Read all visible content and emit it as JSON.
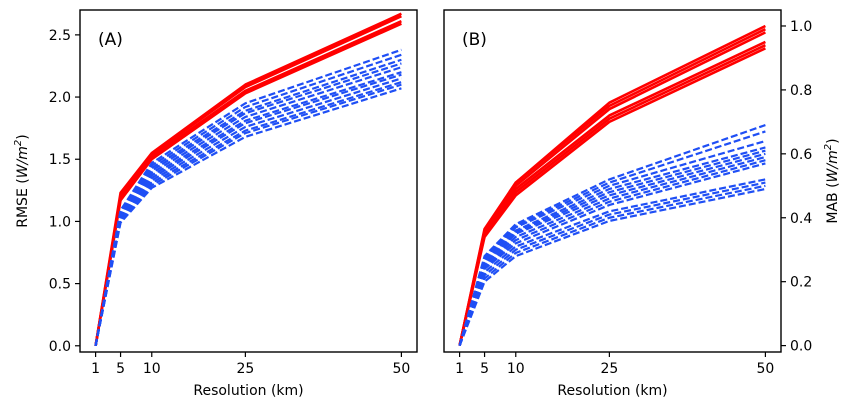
{
  "chart_data": [
    {
      "type": "line",
      "panel_label": "(A)",
      "xlabel": "Resolution (km)",
      "ylabel": "RMSE (W/m²)",
      "ylabel_parts": [
        "RMSE (",
        "W/m",
        "2",
        ")"
      ],
      "x": [
        1,
        5,
        10,
        25,
        50
      ],
      "xticks": [
        "1",
        "5",
        "10",
        "25",
        "50"
      ],
      "ylim": [
        -0.05,
        2.7
      ],
      "yticks": [
        "0.0",
        "0.5",
        "1.0",
        "1.5",
        "2.0",
        "2.5"
      ],
      "ytick_values": [
        0.0,
        0.5,
        1.0,
        1.5,
        2.0,
        2.5
      ],
      "y_axis_side": "left",
      "grid": false,
      "legend": "none",
      "series": [
        {
          "color": "#ff0000",
          "style": "solid",
          "values": [
            0,
            1.17,
            1.5,
            2.03,
            2.59
          ]
        },
        {
          "color": "#ff0000",
          "style": "solid",
          "values": [
            0,
            1.19,
            1.52,
            2.05,
            2.61
          ]
        },
        {
          "color": "#ff0000",
          "style": "solid",
          "values": [
            0,
            1.21,
            1.54,
            2.08,
            2.65
          ]
        },
        {
          "color": "#ff0000",
          "style": "solid",
          "values": [
            0,
            1.23,
            1.55,
            2.1,
            2.67
          ]
        },
        {
          "color": "#1f4ff5",
          "style": "dashed",
          "values": [
            0,
            0.99,
            1.27,
            1.68,
            2.07
          ]
        },
        {
          "color": "#1f4ff5",
          "style": "dashed",
          "values": [
            0,
            1.0,
            1.29,
            1.71,
            2.1
          ]
        },
        {
          "color": "#1f4ff5",
          "style": "dashed",
          "values": [
            0,
            1.01,
            1.31,
            1.73,
            2.12
          ]
        },
        {
          "color": "#1f4ff5",
          "style": "dashed",
          "values": [
            0,
            1.02,
            1.33,
            1.76,
            2.15
          ]
        },
        {
          "color": "#1f4ff5",
          "style": "dashed",
          "values": [
            0,
            1.03,
            1.35,
            1.79,
            2.18
          ]
        },
        {
          "color": "#1f4ff5",
          "style": "dashed",
          "values": [
            0,
            1.04,
            1.37,
            1.81,
            2.2
          ]
        },
        {
          "color": "#1f4ff5",
          "style": "dashed",
          "values": [
            0,
            1.05,
            1.39,
            1.84,
            2.24
          ]
        },
        {
          "color": "#1f4ff5",
          "style": "dashed",
          "values": [
            0,
            1.06,
            1.41,
            1.87,
            2.27
          ]
        },
        {
          "color": "#1f4ff5",
          "style": "dashed",
          "values": [
            0,
            1.07,
            1.43,
            1.89,
            2.3
          ]
        },
        {
          "color": "#1f4ff5",
          "style": "dashed",
          "values": [
            0,
            1.08,
            1.45,
            1.92,
            2.34
          ]
        },
        {
          "color": "#1f4ff5",
          "style": "dashed",
          "values": [
            0,
            1.09,
            1.47,
            1.95,
            2.38
          ]
        }
      ]
    },
    {
      "type": "line",
      "panel_label": "(B)",
      "xlabel": "Resolution (km)",
      "ylabel": "MAB (W/m²)",
      "ylabel_parts": [
        "MAB (",
        "W/m",
        "2",
        ")"
      ],
      "x": [
        1,
        5,
        10,
        25,
        50
      ],
      "xticks": [
        "1",
        "5",
        "10",
        "25",
        "50"
      ],
      "ylim": [
        -0.02,
        1.05
      ],
      "yticks": [
        "0.0",
        "0.2",
        "0.4",
        "0.6",
        "0.8",
        "1.0"
      ],
      "ytick_values": [
        0.0,
        0.2,
        0.4,
        0.6,
        0.8,
        1.0
      ],
      "y_axis_side": "right",
      "grid": false,
      "legend": "none",
      "series": [
        {
          "color": "#ff0000",
          "style": "solid",
          "values": [
            0,
            0.34,
            0.47,
            0.7,
            0.93
          ]
        },
        {
          "color": "#ff0000",
          "style": "solid",
          "values": [
            0,
            0.345,
            0.48,
            0.71,
            0.94
          ]
        },
        {
          "color": "#ff0000",
          "style": "solid",
          "values": [
            0,
            0.35,
            0.49,
            0.72,
            0.95
          ]
        },
        {
          "color": "#ff0000",
          "style": "solid",
          "values": [
            0,
            0.355,
            0.5,
            0.74,
            0.98
          ]
        },
        {
          "color": "#ff0000",
          "style": "solid",
          "values": [
            0,
            0.36,
            0.51,
            0.75,
            0.99
          ]
        },
        {
          "color": "#ff0000",
          "style": "solid",
          "values": [
            0,
            0.365,
            0.51,
            0.76,
            1.0
          ]
        },
        {
          "color": "#1f4ff5",
          "style": "dashed",
          "values": [
            0,
            0.2,
            0.28,
            0.39,
            0.49
          ]
        },
        {
          "color": "#1f4ff5",
          "style": "dashed",
          "values": [
            0,
            0.21,
            0.29,
            0.4,
            0.5
          ]
        },
        {
          "color": "#1f4ff5",
          "style": "dashed",
          "values": [
            0,
            0.22,
            0.3,
            0.41,
            0.51
          ]
        },
        {
          "color": "#1f4ff5",
          "style": "dashed",
          "values": [
            0,
            0.23,
            0.31,
            0.42,
            0.52
          ]
        },
        {
          "color": "#1f4ff5",
          "style": "dashed",
          "values": [
            0,
            0.24,
            0.32,
            0.44,
            0.57
          ]
        },
        {
          "color": "#1f4ff5",
          "style": "dashed",
          "values": [
            0,
            0.245,
            0.33,
            0.45,
            0.58
          ]
        },
        {
          "color": "#1f4ff5",
          "style": "dashed",
          "values": [
            0,
            0.25,
            0.34,
            0.46,
            0.59
          ]
        },
        {
          "color": "#1f4ff5",
          "style": "dashed",
          "values": [
            0,
            0.255,
            0.35,
            0.47,
            0.6
          ]
        },
        {
          "color": "#1f4ff5",
          "style": "dashed",
          "values": [
            0,
            0.26,
            0.355,
            0.48,
            0.61
          ]
        },
        {
          "color": "#1f4ff5",
          "style": "dashed",
          "values": [
            0,
            0.265,
            0.36,
            0.49,
            0.62
          ]
        },
        {
          "color": "#1f4ff5",
          "style": "dashed",
          "values": [
            0,
            0.27,
            0.37,
            0.5,
            0.64
          ]
        },
        {
          "color": "#1f4ff5",
          "style": "dashed",
          "values": [
            0,
            0.275,
            0.375,
            0.51,
            0.67
          ]
        },
        {
          "color": "#1f4ff5",
          "style": "dashed",
          "values": [
            0,
            0.28,
            0.38,
            0.52,
            0.69
          ]
        }
      ]
    }
  ]
}
